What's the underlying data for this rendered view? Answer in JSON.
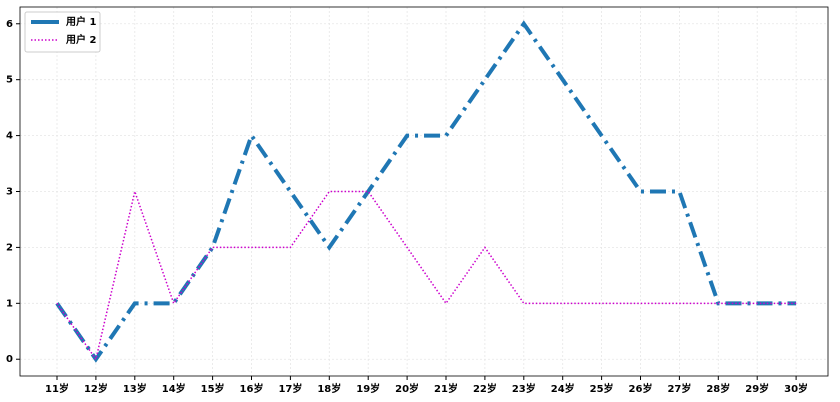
{
  "chart_data": {
    "type": "line",
    "categories": [
      "11岁",
      "12岁",
      "13岁",
      "14岁",
      "15岁",
      "16岁",
      "17岁",
      "18岁",
      "19岁",
      "20岁",
      "21岁",
      "22岁",
      "23岁",
      "24岁",
      "25岁",
      "26岁",
      "27岁",
      "28岁",
      "29岁",
      "30岁"
    ],
    "series": [
      {
        "name": "用户 1",
        "color": "#1f77b4",
        "style": "dashdot",
        "width": 4,
        "values": [
          1,
          0,
          1,
          1,
          2,
          4,
          3,
          2,
          3,
          4,
          4,
          5,
          6,
          5,
          4,
          3,
          3,
          1,
          1,
          1
        ]
      },
      {
        "name": "用户 2",
        "color": "#cc00cc",
        "style": "dotted",
        "width": 1.5,
        "values": [
          1,
          0,
          3,
          1,
          2,
          2,
          2,
          3,
          3,
          2,
          1,
          2,
          1,
          1,
          1,
          1,
          1,
          1,
          1,
          1
        ]
      }
    ],
    "ylim": [
      -0.3,
      6.3
    ],
    "yticks": [
      0,
      1,
      2,
      3,
      4,
      5,
      6
    ],
    "grid": true,
    "legend": "upper-left"
  }
}
